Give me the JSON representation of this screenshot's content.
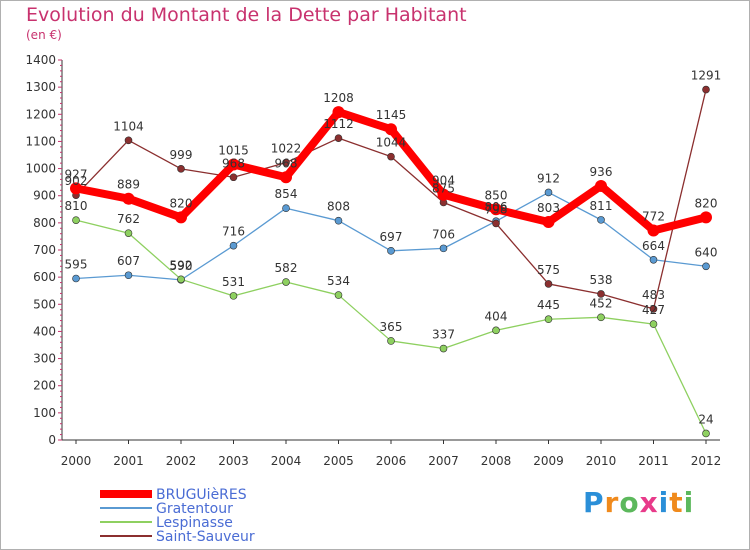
{
  "title": "Evolution du Montant de la Dette par Habitant",
  "subtitle": "(en €)",
  "logo_text": "Proxiti",
  "chart_data": {
    "type": "line",
    "title": "Evolution du Montant de la Dette par Habitant",
    "ylabel": "(en €)",
    "xlabel": "",
    "ylim": [
      0,
      1400
    ],
    "y_ticks": [
      0,
      100,
      200,
      300,
      400,
      500,
      600,
      700,
      800,
      900,
      1000,
      1100,
      1200,
      1300,
      1400
    ],
    "grid": false,
    "legend_position": "bottom-left",
    "categories": [
      "2000",
      "2001",
      "2002",
      "2003",
      "2004",
      "2005",
      "2006",
      "2007",
      "2008",
      "2009",
      "2010",
      "2011",
      "2012"
    ],
    "series": [
      {
        "name": "BRUGUièRES",
        "color": "#ff0000",
        "values": [
          927,
          889,
          820,
          1015,
          968,
          1208,
          1145,
          904,
          850,
          803,
          936,
          772,
          820
        ],
        "labels": [
          "927",
          "889",
          "820",
          "1015",
          "968",
          "1208",
          "1145",
          "904",
          "850",
          "803",
          "936",
          "772",
          "820"
        ]
      },
      {
        "name": "Gratentour",
        "color": "#5a9ad2",
        "values": [
          595,
          607,
          590,
          716,
          854,
          808,
          697,
          706,
          806,
          912,
          811,
          664,
          640
        ],
        "labels": [
          "595",
          "607",
          "590",
          "716",
          "854",
          "808",
          "697",
          "706",
          "806",
          "912",
          "811",
          "664",
          "640"
        ]
      },
      {
        "name": "Lespinasse",
        "color": "#8ed060",
        "values": [
          810,
          762,
          592,
          531,
          582,
          534,
          365,
          337,
          404,
          445,
          452,
          427,
          24
        ],
        "labels": [
          "810",
          "762",
          "592",
          "531",
          "582",
          "534",
          "365",
          "337",
          "404",
          "445",
          "452",
          "427",
          "24"
        ]
      },
      {
        "name": "Saint-Sauveur",
        "color": "#8b2f2f",
        "values": [
          902,
          1104,
          999,
          968,
          1022,
          1112,
          1044,
          875,
          798,
          575,
          538,
          483,
          1291
        ],
        "labels": [
          "902",
          "1104",
          "999",
          "968",
          "1022",
          "1112",
          "1044",
          "875",
          "798",
          "575",
          "538",
          "483",
          "1291"
        ]
      }
    ]
  }
}
